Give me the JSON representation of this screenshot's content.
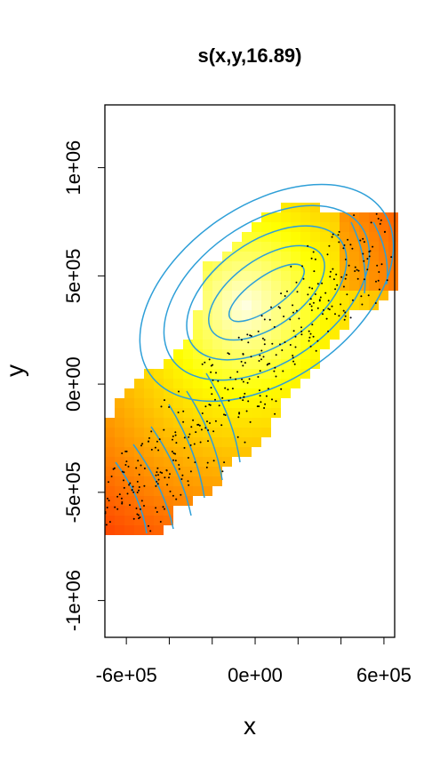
{
  "chart_data": {
    "type": "heatmap",
    "title": "s(x,y,16.89)",
    "xlabel": "x",
    "ylabel": "y",
    "xlim": [
      -700000,
      650000
    ],
    "ylim": [
      -1170000,
      1290000
    ],
    "x_ticks": [
      {
        "value": -600000,
        "label": "-6e+05"
      },
      {
        "value": -400000,
        "label": ""
      },
      {
        "value": -200000,
        "label": ""
      },
      {
        "value": 0,
        "label": "0e+00"
      },
      {
        "value": 200000,
        "label": ""
      },
      {
        "value": 400000,
        "label": ""
      },
      {
        "value": 600000,
        "label": "6e+05"
      }
    ],
    "y_ticks": [
      {
        "value": -1000000,
        "label": "-1e+06"
      },
      {
        "value": -500000,
        "label": "-5e+05"
      },
      {
        "value": 0,
        "label": "0e+00"
      },
      {
        "value": 500000,
        "label": "5e+05"
      },
      {
        "value": 1000000,
        "label": "1e+06"
      }
    ],
    "grid": false,
    "legend": "none",
    "colors": {
      "low": "#ff0000",
      "mid": "#ffff00",
      "high": "#ffffe0",
      "contour": "#2e9fd8",
      "points": "#000000"
    },
    "surface_peak": [
      -50000,
      360000
    ],
    "surface_extent": {
      "x": [
        -700000,
        650000
      ],
      "y": [
        -680000,
        800000
      ]
    }
  }
}
